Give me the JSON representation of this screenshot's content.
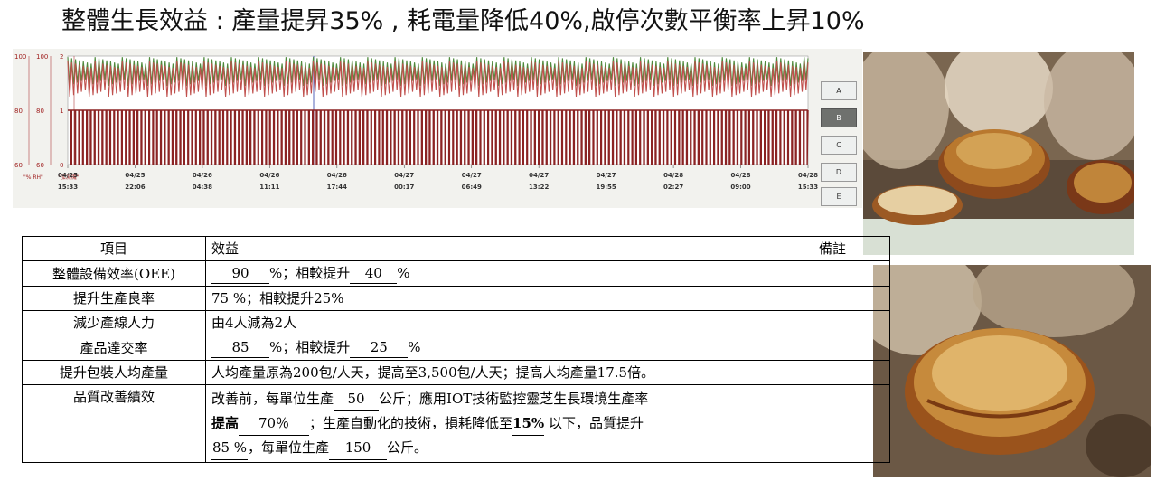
{
  "title": "整體生長效益 : 產量提昇35% , 耗電量降低40%,啟停次數平衡率上昇10%",
  "chart_data": {
    "type": "line",
    "left_axes": [
      {
        "ticks": [
          "100",
          "80",
          "60"
        ]
      },
      {
        "ticks": [
          "100",
          "80",
          "60"
        ]
      },
      {
        "ticks": [
          "2",
          "1",
          "0"
        ]
      }
    ],
    "axis_unit_labels": [
      "\"% RH\"",
      "\"加濕機\""
    ],
    "x_ticks": [
      {
        "date": "04/25",
        "time": "15:33"
      },
      {
        "date": "04/25",
        "time": "22:06"
      },
      {
        "date": "04/26",
        "time": "04:38"
      },
      {
        "date": "04/26",
        "time": "11:11"
      },
      {
        "date": "04/26",
        "time": "17:44"
      },
      {
        "date": "04/27",
        "time": "00:17"
      },
      {
        "date": "04/27",
        "time": "06:49"
      },
      {
        "date": "04/27",
        "time": "13:22"
      },
      {
        "date": "04/27",
        "time": "19:55"
      },
      {
        "date": "04/28",
        "time": "02:27"
      },
      {
        "date": "04/28",
        "time": "09:00"
      },
      {
        "date": "04/28",
        "time": "15:33"
      }
    ],
    "series": [
      {
        "color": "#4f8a3c",
        "range": [
          1.45,
          1.98
        ]
      },
      {
        "color": "#c0504d",
        "range": [
          1.25,
          1.9
        ]
      },
      {
        "color": "#8b2323",
        "range": [
          0,
          1
        ]
      }
    ],
    "cycles": 190,
    "grid": false
  },
  "side_buttons": [
    "A",
    "B",
    "C",
    "D",
    "E"
  ],
  "table": {
    "headers": {
      "item": "項目",
      "benefit": "效益",
      "note": "備註"
    },
    "rows": [
      {
        "item": "整體設備效率(OEE)",
        "parts": {
          "v1": "90",
          "t1": "%；相較提升",
          "v2": "40",
          "t2": "%"
        }
      },
      {
        "item": "提升生產良率",
        "text": "75 %；相較提升25%"
      },
      {
        "item": "減少產線人力",
        "text": "由4人減為2人"
      },
      {
        "item": "產品達交率",
        "parts": {
          "v1": "85",
          "t1": "%；相較提升",
          "v2": "25",
          "t2": "%"
        }
      },
      {
        "item": "提升包裝人均產量",
        "text": "人均產量原為200包/人天，提高至3,500包/人天；提高人均產量17.5倍。"
      },
      {
        "item": "品質改善績效",
        "quality": {
          "l1a": "改善前，每單位生產",
          "l1v": "50",
          "l1b": "公斤；應用IOT技術監控靈芝生長環境生產率",
          "l2a": "提高",
          "l2v": "70％",
          "l2b": "；生產自動化的技術，損耗降低至",
          "l2c": "15%",
          "l2d": "以下，品質提升",
          "l3v": "85 %",
          "l3b": "，每單位生產",
          "l3v2": "150",
          "l3c": "公斤。"
        }
      }
    ]
  }
}
